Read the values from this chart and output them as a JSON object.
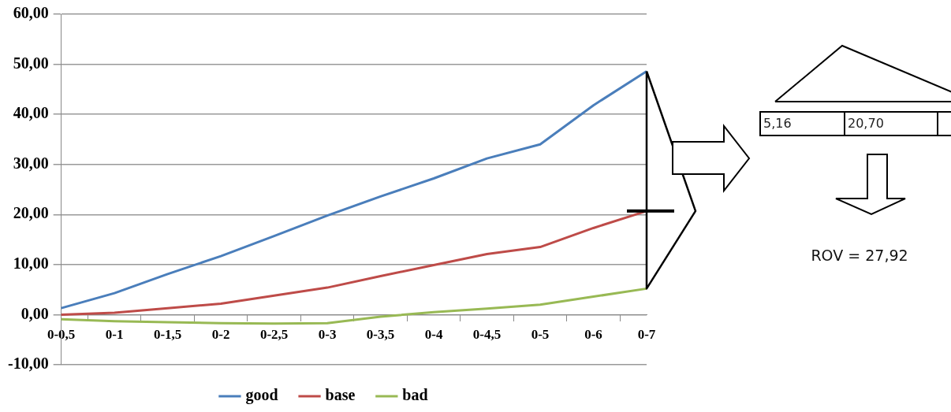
{
  "chart_data": {
    "type": "line",
    "categories": [
      "0-0,5",
      "0-1",
      "0-1,5",
      "0-2",
      "0-2,5",
      "0-3",
      "0-3,5",
      "0-4",
      "0-4,5",
      "0-5",
      "0-6",
      "0-7"
    ],
    "series": [
      {
        "name": "good",
        "color": "#4a7ebb",
        "values": [
          1.3,
          4.3,
          8.1,
          11.7,
          15.7,
          19.8,
          23.6,
          27.2,
          31.2,
          34.0,
          41.8,
          48.6
        ]
      },
      {
        "name": "base",
        "color": "#be4b48",
        "values": [
          0.0,
          0.4,
          1.3,
          2.2,
          3.8,
          5.4,
          7.7,
          9.9,
          12.1,
          13.5,
          17.3,
          20.7
        ]
      },
      {
        "name": "bad",
        "color": "#98b954",
        "values": [
          -0.9,
          -1.3,
          -1.5,
          -1.7,
          -1.8,
          -1.7,
          -0.4,
          0.5,
          1.2,
          2.0,
          3.6,
          5.2
        ]
      }
    ],
    "ylim": [
      -10,
      60
    ],
    "yticks": [
      {
        "value": -10,
        "label": "-10,00"
      },
      {
        "value": 0,
        "label": "0,00"
      },
      {
        "value": 10,
        "label": "10,00"
      },
      {
        "value": 20,
        "label": "20,00"
      },
      {
        "value": 30,
        "label": "30,00"
      },
      {
        "value": 40,
        "label": "40,00"
      },
      {
        "value": 50,
        "label": "50,00"
      },
      {
        "value": 60,
        "label": "60,00"
      }
    ],
    "grid": "y",
    "legend": "bottom",
    "marker": "none",
    "line_style": "solid",
    "annotations": [
      "5,16",
      "20,70",
      "ROV = 27,92"
    ]
  }
}
